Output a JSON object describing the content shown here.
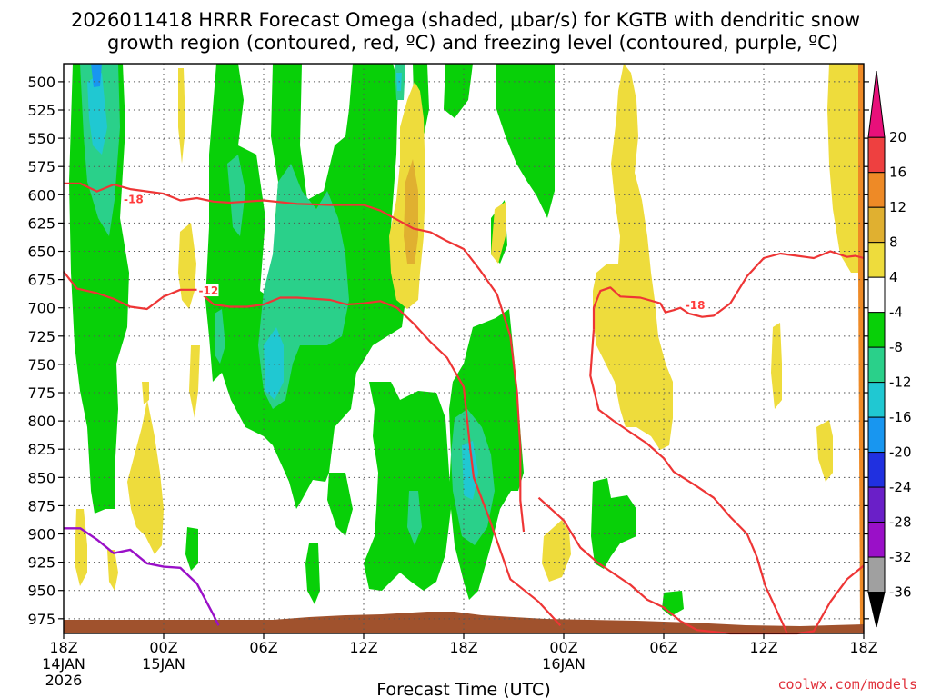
{
  "chart_data": {
    "type": "time-height-cross-section",
    "title_line1": "2026011418 HRRR Forecast Omega (shaded, μbar/s) for KGTB with dendritic snow",
    "title_line2": "growth region (contoured, red, ºC) and freezing level (contoured, purple, ºC)",
    "xlabel": "Forecast Time (UTC)",
    "credit": "coolwx.com/models",
    "y_axis": {
      "units": "hPa",
      "range": [
        484,
        988
      ],
      "ticks": [
        500,
        525,
        550,
        575,
        600,
        625,
        650,
        675,
        700,
        725,
        750,
        775,
        800,
        825,
        850,
        875,
        900,
        925,
        950,
        975
      ]
    },
    "x_axis": {
      "range_hours": [
        0,
        48
      ],
      "ticks": [
        {
          "hour": 0,
          "label": "18Z",
          "sub1": "14JAN",
          "sub2": "2026"
        },
        {
          "hour": 6,
          "label": "00Z",
          "sub1": "15JAN",
          "sub2": ""
        },
        {
          "hour": 12,
          "label": "06Z",
          "sub1": "",
          "sub2": ""
        },
        {
          "hour": 18,
          "label": "12Z",
          "sub1": "",
          "sub2": ""
        },
        {
          "hour": 24,
          "label": "18Z",
          "sub1": "",
          "sub2": ""
        },
        {
          "hour": 30,
          "label": "00Z",
          "sub1": "16JAN",
          "sub2": ""
        },
        {
          "hour": 36,
          "label": "06Z",
          "sub1": "",
          "sub2": ""
        },
        {
          "hour": 42,
          "label": "12Z",
          "sub1": "",
          "sub2": ""
        },
        {
          "hour": 48,
          "label": "18Z",
          "sub1": "",
          "sub2": ""
        }
      ]
    },
    "colorbar": {
      "levels": [
        -36,
        -32,
        -28,
        -24,
        -20,
        -16,
        -12,
        -8,
        -4,
        4,
        8,
        12,
        16,
        20
      ],
      "bins": [
        {
          "from": -40,
          "to": -36,
          "color": "#000000"
        },
        {
          "from": -36,
          "to": -32,
          "color": "#a0a0a0"
        },
        {
          "from": -32,
          "to": -28,
          "color": "#9a10c8"
        },
        {
          "from": -28,
          "to": -24,
          "color": "#6a1fc8"
        },
        {
          "from": -24,
          "to": -20,
          "color": "#2030e0"
        },
        {
          "from": -20,
          "to": -16,
          "color": "#1896f0"
        },
        {
          "from": -16,
          "to": -12,
          "color": "#20c8d2"
        },
        {
          "from": -12,
          "to": -8,
          "color": "#2ad08a"
        },
        {
          "from": -8,
          "to": -4,
          "color": "#08d008"
        },
        {
          "from": -4,
          "to": 4,
          "color": "#ffffff"
        },
        {
          "from": 4,
          "to": 8,
          "color": "#eedc3c"
        },
        {
          "from": 8,
          "to": 12,
          "color": "#e0b030"
        },
        {
          "from": 12,
          "to": 16,
          "color": "#ee8a26"
        },
        {
          "from": 16,
          "to": 20,
          "color": "#ee4040"
        },
        {
          "from": 20,
          "to": 24,
          "color": "#e8107a"
        }
      ]
    },
    "dgz_contours": [
      {
        "level": -18,
        "label": "-18",
        "label_at": [
          3.6,
          604
        ],
        "points": [
          [
            0,
            590
          ],
          [
            1,
            590
          ],
          [
            2,
            597
          ],
          [
            3,
            591
          ],
          [
            4,
            595
          ],
          [
            6,
            599
          ],
          [
            7,
            605
          ],
          [
            8,
            603
          ],
          [
            9,
            606
          ],
          [
            10,
            607
          ],
          [
            12,
            605
          ],
          [
            14,
            608
          ],
          [
            16,
            609
          ],
          [
            18,
            609
          ],
          [
            19,
            614
          ],
          [
            20,
            622
          ],
          [
            21,
            630
          ],
          [
            22,
            633
          ],
          [
            23,
            641
          ],
          [
            24,
            648
          ],
          [
            25,
            667
          ],
          [
            26,
            688
          ],
          [
            26.8,
            725
          ],
          [
            27.2,
            775
          ],
          [
            27.4,
            825
          ],
          [
            27.4,
            870
          ],
          [
            27.6,
            898
          ]
        ]
      },
      {
        "level": -12,
        "label": "-12",
        "label_at": [
          8.1,
          685
        ],
        "points": [
          [
            0,
            668
          ],
          [
            0.8,
            683
          ],
          [
            2,
            687
          ],
          [
            3,
            692
          ],
          [
            4,
            699
          ],
          [
            5,
            701
          ],
          [
            6,
            690
          ],
          [
            7,
            684
          ],
          [
            8,
            684
          ],
          [
            9,
            697
          ],
          [
            10,
            699
          ],
          [
            11,
            699
          ],
          [
            12,
            697
          ],
          [
            13,
            691
          ],
          [
            14,
            691
          ],
          [
            16,
            693
          ],
          [
            17,
            697
          ],
          [
            18,
            696
          ],
          [
            19,
            694
          ],
          [
            20,
            700
          ],
          [
            21,
            714
          ],
          [
            22,
            730
          ],
          [
            23,
            744
          ],
          [
            24,
            770
          ],
          [
            24.4,
            825
          ],
          [
            24.6,
            850
          ],
          [
            25.5,
            885
          ],
          [
            26.8,
            940
          ],
          [
            28.5,
            960
          ],
          [
            29.8,
            981
          ]
        ]
      },
      {
        "level": -18,
        "label": "-18",
        "label_at": [
          37.3,
          698
        ],
        "points": [
          [
            31.8,
            719
          ],
          [
            31.6,
            760
          ],
          [
            32.1,
            790
          ],
          [
            33.0,
            800
          ],
          [
            34,
            810
          ],
          [
            35,
            820
          ],
          [
            36,
            833
          ],
          [
            36.6,
            845
          ],
          [
            38,
            858
          ],
          [
            39,
            868
          ],
          [
            40,
            885
          ],
          [
            41,
            900
          ],
          [
            41.6,
            921
          ],
          [
            42.1,
            946
          ],
          [
            42.6,
            962
          ],
          [
            43.1,
            978
          ],
          [
            43.4,
            988
          ]
        ]
      },
      {
        "level": -18,
        "label": "",
        "label_at": null,
        "points": [
          [
            31.8,
            719
          ],
          [
            31.8,
            700
          ],
          [
            32.2,
            685
          ],
          [
            32.8,
            682
          ],
          [
            33.4,
            690
          ],
          [
            34.6,
            691
          ],
          [
            35.8,
            696
          ],
          [
            36.1,
            704
          ],
          [
            36.6,
            702
          ],
          [
            37.0,
            700
          ],
          [
            37.5,
            705
          ],
          [
            38.3,
            708
          ],
          [
            39.0,
            707
          ],
          [
            40,
            696
          ],
          [
            41,
            672
          ],
          [
            42,
            656
          ],
          [
            43,
            652
          ],
          [
            44,
            654
          ],
          [
            45,
            656
          ],
          [
            46,
            650
          ],
          [
            47,
            655
          ],
          [
            47.5,
            654
          ],
          [
            48,
            656
          ]
        ]
      },
      {
        "level": -12,
        "label": "",
        "label_at": null,
        "points": [
          [
            28.5,
            868
          ],
          [
            30,
            888
          ],
          [
            31,
            912
          ],
          [
            32,
            925
          ],
          [
            33,
            935
          ],
          [
            34,
            945
          ],
          [
            35,
            958
          ],
          [
            36,
            965
          ],
          [
            37,
            977
          ],
          [
            38,
            985
          ],
          [
            40,
            988
          ],
          [
            44,
            988
          ],
          [
            45,
            986
          ],
          [
            46,
            960
          ],
          [
            47,
            940
          ],
          [
            48,
            928
          ]
        ]
      }
    ],
    "freezing_level": {
      "level": 0,
      "points": [
        [
          0,
          895
        ],
        [
          1,
          895
        ],
        [
          2,
          905
        ],
        [
          3,
          917
        ],
        [
          4,
          914
        ],
        [
          5,
          926
        ],
        [
          6,
          929
        ],
        [
          7,
          930
        ],
        [
          8,
          944
        ],
        [
          9,
          972
        ],
        [
          9.3,
          981
        ]
      ]
    },
    "terrain_hpa": 976
  }
}
